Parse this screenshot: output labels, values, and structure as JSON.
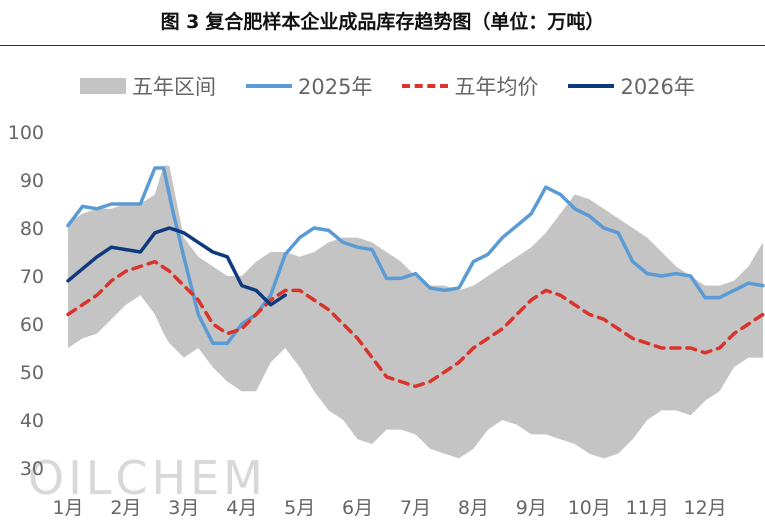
{
  "figure": {
    "number": "图 3",
    "title": "复合肥样本企业成品库存趋势图（单位：万吨）"
  },
  "watermark": "OILCHEM",
  "colors": {
    "band": "#c4c4c4",
    "series_2025": "#5b9bd5",
    "avg": "#d9332b",
    "series_2026": "#0e3a7d",
    "axis_text": "#666666"
  },
  "chart_data": {
    "type": "line",
    "title": "复合肥样本企业成品库存趋势图（单位：万吨）",
    "xlabel": "",
    "ylabel": "",
    "ylim": [
      30,
      100
    ],
    "yticks": [
      "30",
      "40",
      "50",
      "60",
      "70",
      "80",
      "90",
      "100"
    ],
    "xlim": [
      0,
      12
    ],
    "month_labels": [
      "1月",
      "2月",
      "3月",
      "4月",
      "5月",
      "6月",
      "7月",
      "8月",
      "9月",
      "10月",
      "11月",
      "12月"
    ],
    "grid": false,
    "legend_position": "top",
    "legend": [
      "五年区间",
      "2025年",
      "五年均价",
      "2026年"
    ],
    "band": {
      "name": "五年区间",
      "x": [
        0,
        0.25,
        0.5,
        0.75,
        1,
        1.25,
        1.5,
        1.65,
        1.75,
        2,
        2.25,
        2.5,
        2.75,
        3,
        3.25,
        3.5,
        3.75,
        4,
        4.25,
        4.5,
        4.75,
        5,
        5.25,
        5.5,
        5.75,
        6,
        6.25,
        6.5,
        6.75,
        7,
        7.25,
        7.5,
        7.75,
        8,
        8.25,
        8.5,
        8.75,
        9,
        9.25,
        9.5,
        9.75,
        10,
        10.25,
        10.5,
        10.75,
        11,
        11.25,
        11.5,
        11.75,
        12
      ],
      "upper": [
        81,
        83,
        84,
        84,
        85,
        85,
        87,
        93,
        93,
        78,
        74,
        72,
        70,
        70,
        73,
        75,
        75,
        74,
        75,
        77,
        78,
        78,
        77,
        75,
        73,
        70,
        68,
        68,
        67,
        68,
        70,
        72,
        74,
        76,
        79,
        83,
        87,
        86,
        84,
        82,
        80,
        78,
        75,
        72,
        70,
        68,
        68,
        69,
        72,
        77
      ],
      "lower": [
        55,
        57,
        58,
        61,
        64,
        66,
        62,
        58,
        56,
        53,
        55,
        51,
        48,
        46,
        46,
        52,
        55,
        51,
        46,
        42,
        40,
        36,
        35,
        38,
        38,
        37,
        34,
        33,
        32,
        34,
        38,
        40,
        39,
        37,
        37,
        36,
        35,
        33,
        32,
        33,
        36,
        40,
        42,
        42,
        41,
        44,
        46,
        51,
        53,
        53
      ]
    },
    "series": [
      {
        "name": "2025年",
        "x": [
          0,
          0.25,
          0.5,
          0.75,
          1,
          1.25,
          1.5,
          1.65,
          1.8,
          2,
          2.25,
          2.5,
          2.75,
          3,
          3.25,
          3.5,
          3.75,
          4,
          4.25,
          4.5,
          4.75,
          5,
          5.25,
          5.5,
          5.75,
          6,
          6.25,
          6.5,
          6.75,
          7,
          7.25,
          7.5,
          7.75,
          8,
          8.25,
          8.5,
          8.75,
          9,
          9.25,
          9.5,
          9.75,
          10,
          10.25,
          10.5,
          10.75,
          11,
          11.25,
          11.5,
          11.75,
          12
        ],
        "values": [
          80.5,
          84.5,
          84,
          85,
          85,
          85,
          92.5,
          92.5,
          84,
          74,
          62,
          56,
          56,
          60,
          62,
          66,
          74.5,
          78,
          80,
          79.5,
          77,
          76,
          75.5,
          69.5,
          69.5,
          70.5,
          67.5,
          67,
          67.5,
          73,
          74.5,
          78,
          80.5,
          83,
          88.5,
          87,
          84,
          82.5,
          80,
          79,
          73,
          70.5,
          70,
          70.5,
          70,
          65.5,
          65.5,
          67,
          68.5,
          68
        ]
      },
      {
        "name": "五年均价",
        "x": [
          0,
          0.25,
          0.5,
          0.75,
          1,
          1.25,
          1.5,
          1.75,
          2,
          2.25,
          2.5,
          2.75,
          3,
          3.25,
          3.5,
          3.75,
          4,
          4.25,
          4.5,
          4.75,
          5,
          5.25,
          5.5,
          5.75,
          6,
          6.25,
          6.5,
          6.75,
          7,
          7.25,
          7.5,
          7.75,
          8,
          8.25,
          8.5,
          8.75,
          9,
          9.25,
          9.5,
          9.75,
          10,
          10.25,
          10.5,
          10.75,
          11,
          11.25,
          11.5,
          11.75,
          12
        ],
        "values": [
          62,
          64,
          66,
          69,
          71,
          72,
          73,
          71,
          68,
          65,
          60,
          58,
          59,
          62,
          65,
          67,
          67,
          65,
          63,
          60,
          57,
          53,
          49,
          48,
          47,
          48,
          50,
          52,
          55,
          57,
          59,
          62,
          65,
          67,
          66,
          64,
          62,
          61,
          59,
          57,
          56,
          55,
          55,
          55,
          54,
          55,
          58,
          60,
          62
        ]
      },
      {
        "name": "2026年",
        "x": [
          0,
          0.25,
          0.5,
          0.75,
          1,
          1.25,
          1.5,
          1.75,
          2,
          2.25,
          2.5,
          2.75,
          3,
          3.25,
          3.5,
          3.75
        ],
        "values": [
          69,
          71.5,
          74,
          76,
          75.5,
          75,
          79,
          80,
          79,
          77,
          75,
          74,
          68,
          67,
          64,
          66
        ]
      }
    ]
  }
}
